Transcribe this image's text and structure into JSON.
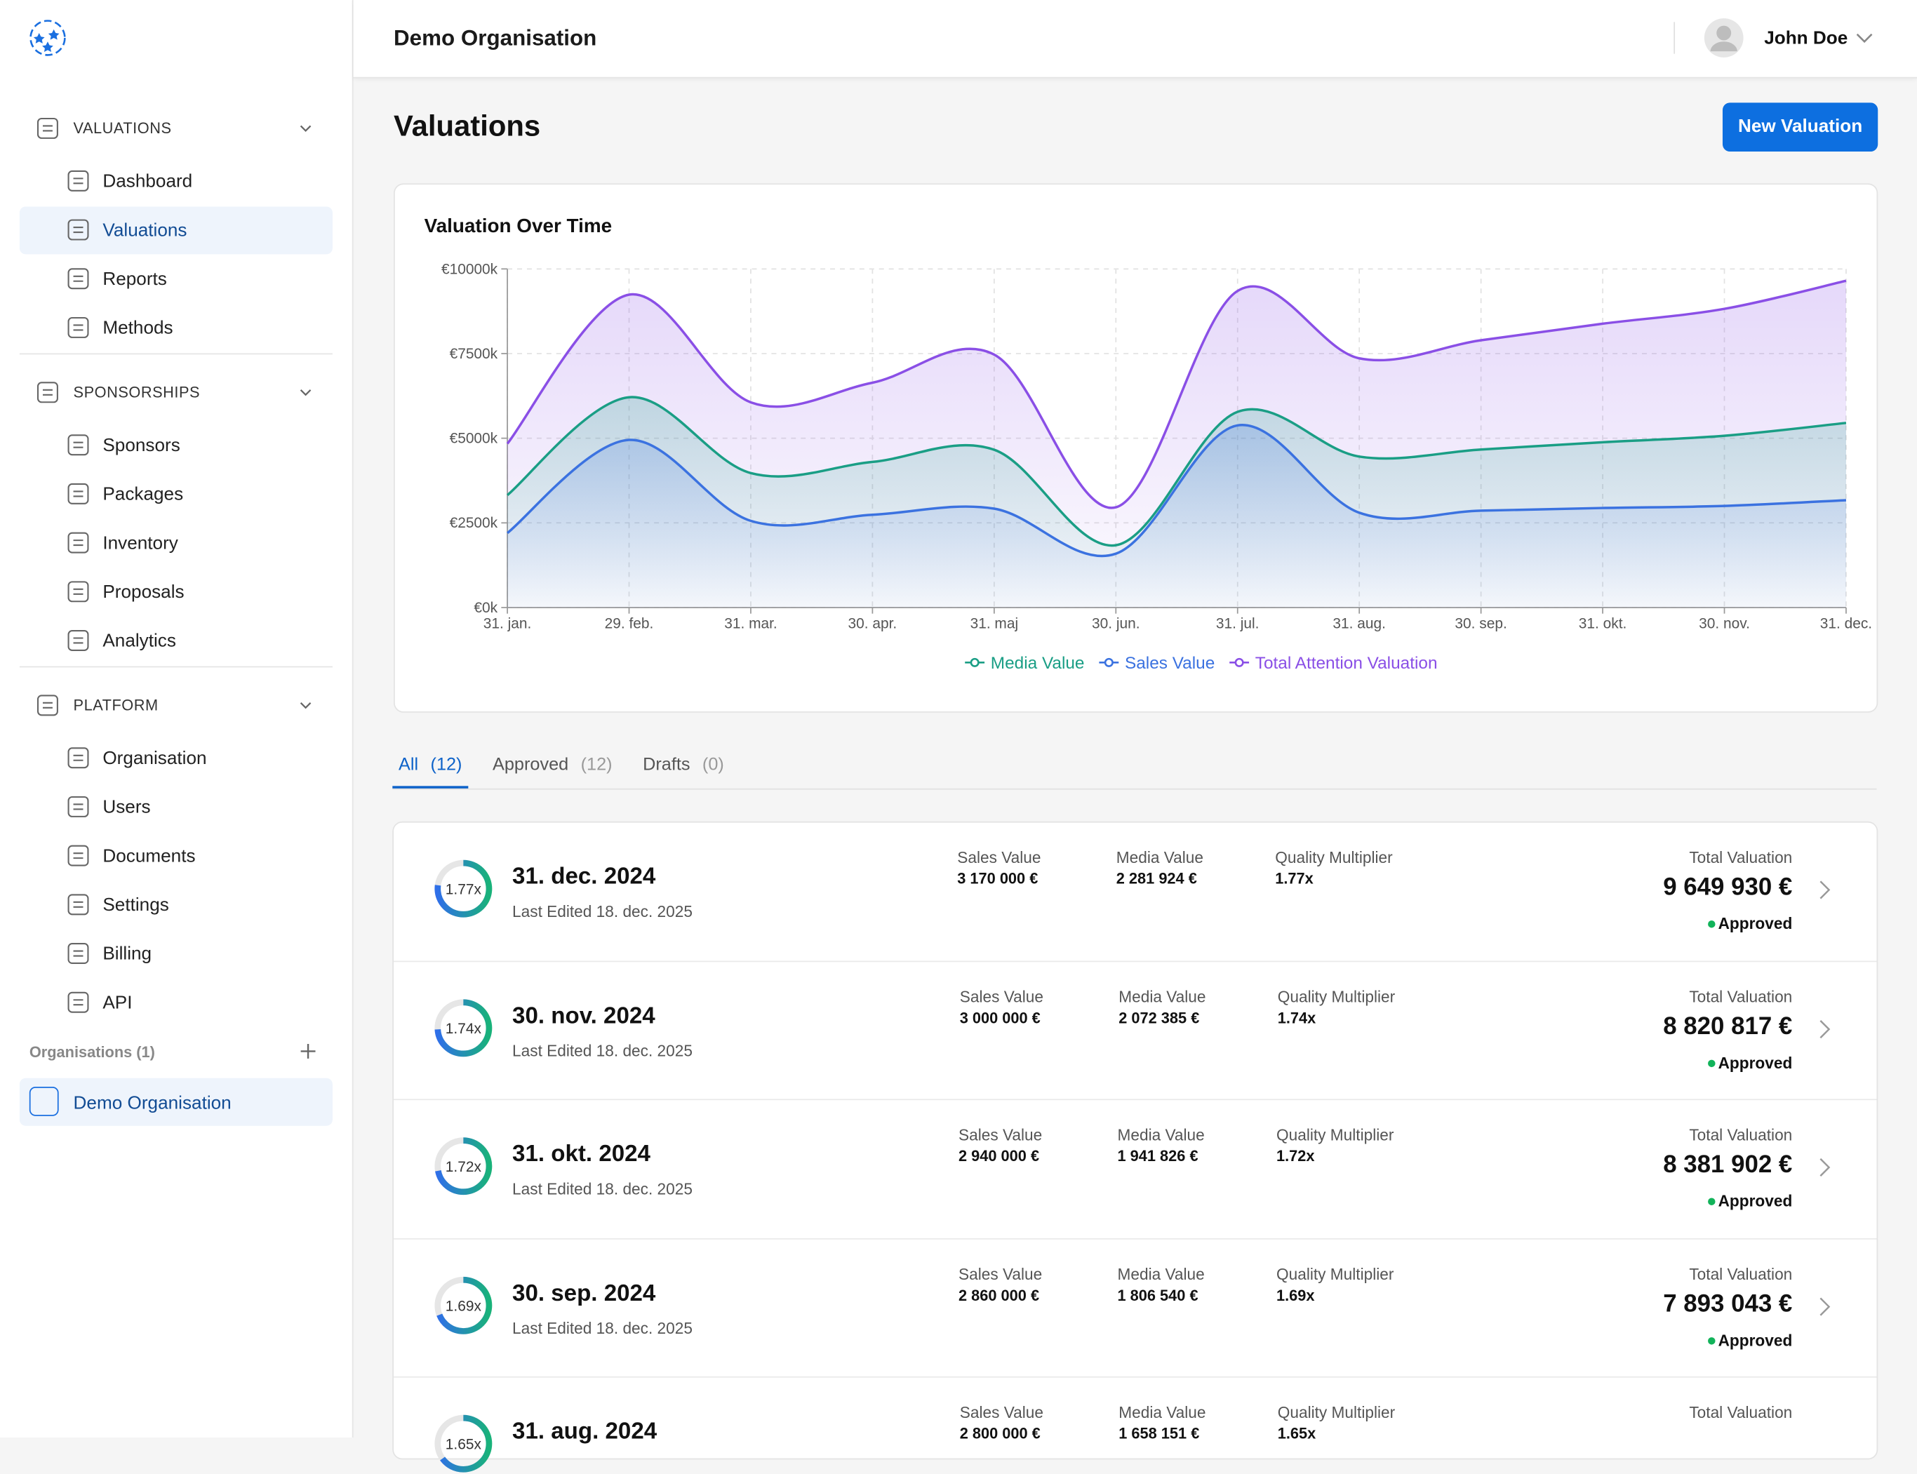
{
  "sidebar": {
    "sections": [
      {
        "title": "VALUATIONS",
        "items": [
          "Dashboard",
          "Valuations",
          "Reports",
          "Methods"
        ]
      },
      {
        "title": "SPONSORSHIPS",
        "items": [
          "Sponsors",
          "Packages",
          "Inventory",
          "Proposals",
          "Analytics"
        ]
      },
      {
        "title": "PLATFORM",
        "items": [
          "Organisation",
          "Users",
          "Documents",
          "Settings",
          "Billing",
          "API"
        ]
      }
    ],
    "organisations_label": "Organisations (1)",
    "organisation": "Demo Organisation"
  },
  "header": {
    "organisation": "Demo Organisation",
    "user": "John Doe"
  },
  "page": {
    "title": "Valuations",
    "button": "New Valuation"
  },
  "chart_data": {
    "type": "area",
    "title": "Valuation Over Time",
    "categories": [
      "31. jan.",
      "29. feb.",
      "31. mar.",
      "30. apr.",
      "31. maj",
      "30. jun.",
      "31. jul.",
      "31. aug.",
      "30. sep.",
      "31. okt.",
      "30. nov.",
      "31. dec."
    ],
    "series": [
      {
        "name": "Media Value",
        "color": "#1a9e85",
        "stack": "value",
        "values": [
          1120,
          1260,
          1410,
          1560,
          1740,
          250,
          400,
          1658,
          1807,
          1942,
          2072,
          2282
        ]
      },
      {
        "name": "Sales Value",
        "color": "#3b72e0",
        "stack": "value",
        "values": [
          2200,
          4950,
          2560,
          2740,
          2920,
          1590,
          5380,
          2800,
          2860,
          2940,
          3000,
          3170
        ]
      },
      {
        "name": "Total Attention Valuation",
        "color": "#8a4fe6",
        "values": [
          4840,
          9240,
          6060,
          6640,
          7470,
          2960,
          9350,
          7360,
          7893,
          8382,
          8821,
          9650
        ]
      }
    ],
    "ylim": [
      0,
      10000
    ],
    "yticks": [
      {
        "value": 0,
        "label": "€0k"
      },
      {
        "value": 2500,
        "label": "€2500k"
      },
      {
        "value": 5000,
        "label": "€5000k"
      },
      {
        "value": 7500,
        "label": "€7500k"
      },
      {
        "value": 10000,
        "label": "€10000k"
      }
    ],
    "grid": true,
    "legend": "bottom"
  },
  "tabs": [
    {
      "label": "All",
      "count": "(12)"
    },
    {
      "label": "Approved",
      "count": "(12)"
    },
    {
      "label": "Drafts",
      "count": "(0)"
    }
  ],
  "columns": {
    "sales": "Sales Value",
    "media": "Media Value",
    "quality": "Quality Multiplier",
    "total": "Total Valuation"
  },
  "rows": [
    {
      "date": "31. dec. 2024",
      "edited": "Last Edited 18. dec. 2025",
      "sales": "3 170 000 €",
      "media": "2 281 924 €",
      "multiplier": {
        "value": 1.77,
        "label": "1.77x"
      },
      "total": "9 649 930 €",
      "status": "Approved"
    },
    {
      "date": "30. nov. 2024",
      "edited": "Last Edited 18. dec. 2025",
      "sales": "3 000 000 €",
      "media": "2 072 385 €",
      "multiplier": {
        "value": 1.74,
        "label": "1.74x"
      },
      "total": "8 820 817 €",
      "status": "Approved"
    },
    {
      "date": "31. okt. 2024",
      "edited": "Last Edited 18. dec. 2025",
      "sales": "2 940 000 €",
      "media": "1 941 826 €",
      "multiplier": {
        "value": 1.72,
        "label": "1.72x"
      },
      "total": "8 381 902 €",
      "status": "Approved"
    },
    {
      "date": "30. sep. 2024",
      "edited": "Last Edited 18. dec. 2025",
      "sales": "2 860 000 €",
      "media": "1 806 540 €",
      "multiplier": {
        "value": 1.69,
        "label": "1.69x"
      },
      "total": "7 893 043 €",
      "status": "Approved"
    },
    {
      "date": "31. aug. 2024",
      "sales": "2 800 000 €",
      "media": "1 658 151 €",
      "multiplier": {
        "value": 1.65,
        "label": "1.65x"
      }
    }
  ]
}
